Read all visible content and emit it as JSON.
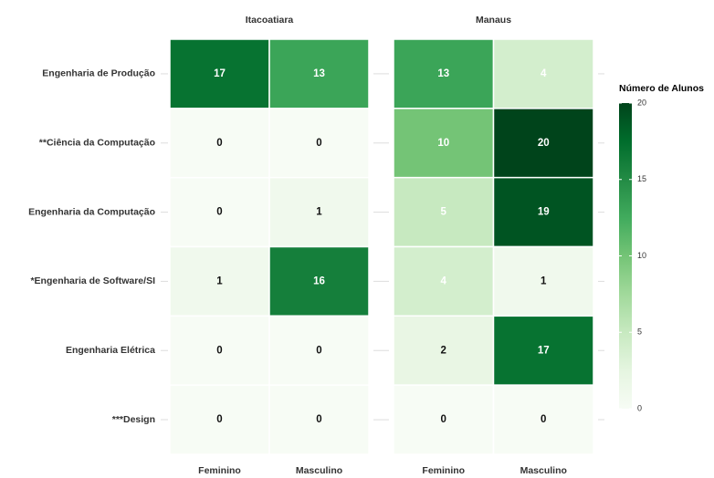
{
  "chart_data": {
    "type": "heatmap",
    "rows": [
      "Engenharia de Produção",
      "**Ciência da Computação",
      "Engenharia da Computação",
      "*Engenharia de Software/SI",
      "Engenharia Elétrica",
      "***Design"
    ],
    "columns": [
      "Feminino",
      "Masculino"
    ],
    "facets": [
      {
        "name": "Itacoatiara",
        "values": [
          [
            17,
            13
          ],
          [
            0,
            0
          ],
          [
            0,
            1
          ],
          [
            1,
            16
          ],
          [
            0,
            0
          ],
          [
            0,
            0
          ]
        ]
      },
      {
        "name": "Manaus",
        "values": [
          [
            13,
            4
          ],
          [
            10,
            20
          ],
          [
            5,
            19
          ],
          [
            4,
            1
          ],
          [
            2,
            17
          ],
          [
            0,
            0
          ]
        ]
      }
    ],
    "legend_title": "Número de Alunos",
    "clim": [
      0,
      20
    ],
    "cticks": [
      0,
      5,
      10,
      15,
      20
    ],
    "colors": [
      "#f7fcf5",
      "#e5f5e0",
      "#c7e9c0",
      "#a1d99b",
      "#74c476",
      "#41ab5d",
      "#238b45",
      "#006d2c",
      "#00441b"
    ]
  }
}
